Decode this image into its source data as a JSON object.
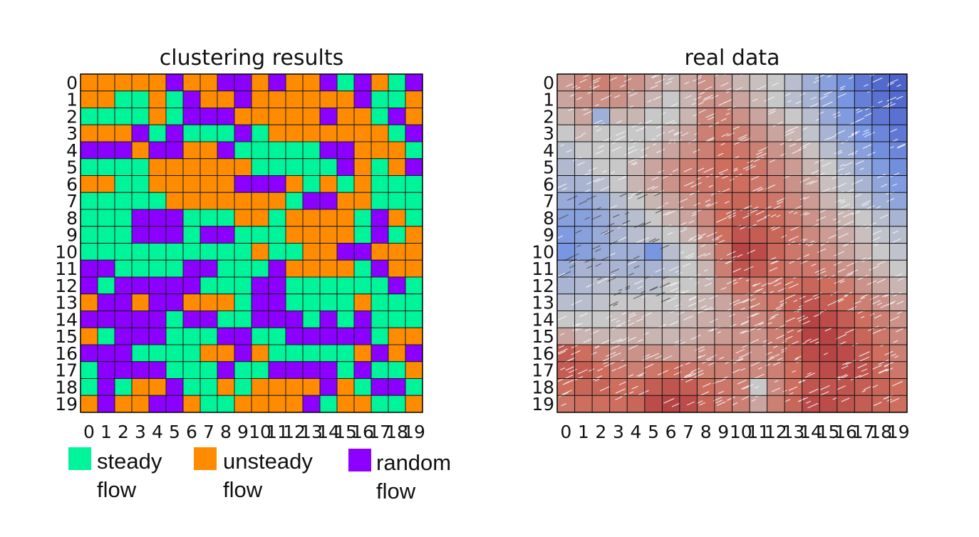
{
  "chart_data": [
    {
      "type": "heatmap",
      "title": "clustering results",
      "x": [
        "0",
        "1",
        "2",
        "3",
        "4",
        "5",
        "6",
        "7",
        "8",
        "9",
        "10",
        "11",
        "12",
        "13",
        "14",
        "15",
        "16",
        "17",
        "18",
        "19"
      ],
      "y": [
        "0",
        "1",
        "2",
        "3",
        "4",
        "5",
        "6",
        "7",
        "8",
        "9",
        "10",
        "11",
        "12",
        "13",
        "14",
        "15",
        "16",
        "17",
        "18",
        "19"
      ],
      "categories": {
        "S": {
          "label": "steady flow",
          "color": "#00f59a"
        },
        "U": {
          "label": "unsteady flow",
          "color": "#ff8c00"
        },
        "R": {
          "label": "random flow",
          "color": "#8b00ff"
        }
      },
      "rows": [
        "UUUUURUURRURUURSRUSR",
        "UUSSUSRUURUUUUUURSSU",
        "SSSSUSRRRUUUUURUUSRU",
        "UUURSRSSSRSUUUUUUUSR",
        "RRRURRUURSSSSSRRUUUS",
        "SSSSUUUUUUSSSSSRUSUR",
        "UUSSUUUUURRRUSUSUSSS",
        "SSSSSUUUUUUUSRRUUSSS",
        "SSSRRRSSSUUSUUUUSRUS",
        "SSSRRRSRRSSSUUUUSRSU",
        "SSSSSSSSSSUSSUURRUUU",
        "RRSSSSRRSSSRUUUUSRUU",
        "RSRRRRRSSSRRSSSSSSRS",
        "URRURRUUUSRRSSSSUSSS",
        "RRRRRSRRSSRRRSRSRSSS",
        "USRRRSSSRRSSRRRRRSUU",
        "RRRSSSSUURUSSSSSURUR",
        "SRRRRSSSRSSRRRRSRSSU",
        "SRSUURSSUSUUUURUSRRS",
        "URUURRUSSUUUURSUUSSU"
      ]
    },
    {
      "type": "heatmap",
      "title": "real data",
      "x": [
        "0",
        "1",
        "2",
        "3",
        "4",
        "5",
        "6",
        "7",
        "8",
        "9",
        "10",
        "11",
        "12",
        "13",
        "14",
        "15",
        "16",
        "17",
        "18",
        "19"
      ],
      "y": [
        "0",
        "1",
        "2",
        "3",
        "4",
        "5",
        "6",
        "7",
        "8",
        "9",
        "10",
        "11",
        "12",
        "13",
        "14",
        "15",
        "16",
        "17",
        "18",
        "19"
      ],
      "colormap": "coolwarm",
      "scale": [
        -1,
        1
      ],
      "rows": [
        [
          0.25,
          0.35,
          0.4,
          0.35,
          0.3,
          0.2,
          0.1,
          0.2,
          0.3,
          0.2,
          0.1,
          0.05,
          0.0,
          -0.1,
          -0.25,
          -0.4,
          -0.55,
          -0.7,
          -0.8,
          -0.85
        ],
        [
          0.2,
          0.3,
          0.3,
          0.3,
          0.2,
          0.1,
          0.0,
          0.1,
          0.3,
          0.3,
          0.2,
          0.1,
          0.0,
          -0.1,
          -0.2,
          -0.35,
          -0.5,
          -0.65,
          -0.75,
          -0.8
        ],
        [
          0.1,
          0.2,
          -0.25,
          0.1,
          0.1,
          0.0,
          0.0,
          0.1,
          0.35,
          0.4,
          0.3,
          0.2,
          0.1,
          0.0,
          -0.1,
          -0.3,
          -0.45,
          -0.6,
          -0.7,
          -0.75
        ],
        [
          0.0,
          0.1,
          0.0,
          0.0,
          0.0,
          0.0,
          0.1,
          0.2,
          0.4,
          0.45,
          0.4,
          0.3,
          0.2,
          0.1,
          -0.05,
          -0.2,
          -0.35,
          -0.5,
          -0.6,
          -0.7
        ],
        [
          -0.1,
          0.0,
          0.0,
          0.0,
          0.0,
          0.1,
          0.2,
          0.3,
          0.4,
          0.5,
          0.45,
          0.4,
          0.3,
          0.2,
          0.05,
          -0.1,
          -0.25,
          -0.4,
          -0.55,
          -0.6
        ],
        [
          -0.15,
          -0.1,
          0.0,
          0.0,
          0.1,
          0.2,
          0.3,
          0.4,
          0.45,
          0.5,
          0.5,
          0.45,
          0.35,
          0.25,
          0.1,
          0.0,
          -0.15,
          -0.3,
          -0.45,
          -0.55
        ],
        [
          -0.2,
          -0.2,
          -0.1,
          0.0,
          0.1,
          0.2,
          0.3,
          0.4,
          0.45,
          0.5,
          0.5,
          0.45,
          0.4,
          0.3,
          0.2,
          0.05,
          -0.05,
          -0.2,
          -0.35,
          -0.45
        ],
        [
          -0.3,
          -0.35,
          -0.25,
          -0.1,
          0.0,
          0.1,
          0.2,
          0.3,
          0.4,
          0.5,
          0.55,
          0.5,
          0.45,
          0.35,
          0.25,
          0.1,
          0.0,
          -0.1,
          -0.25,
          -0.35
        ],
        [
          -0.4,
          -0.4,
          -0.3,
          -0.2,
          -0.1,
          0.0,
          0.1,
          0.2,
          0.35,
          0.5,
          0.6,
          0.55,
          0.5,
          0.4,
          0.3,
          0.2,
          0.1,
          0.0,
          -0.1,
          -0.2
        ],
        [
          -0.45,
          -0.4,
          -0.3,
          -0.2,
          -0.1,
          -0.05,
          0.0,
          0.1,
          0.3,
          0.5,
          0.65,
          0.6,
          0.55,
          0.45,
          0.35,
          0.25,
          0.15,
          0.05,
          -0.05,
          -0.1
        ],
        [
          -0.5,
          -0.4,
          -0.3,
          -0.25,
          -0.25,
          -0.5,
          -0.1,
          0.0,
          0.2,
          0.45,
          0.75,
          0.7,
          0.55,
          0.45,
          0.4,
          0.3,
          0.2,
          0.1,
          0.0,
          -0.05
        ],
        [
          -0.3,
          -0.2,
          -0.2,
          -0.2,
          -0.2,
          -0.2,
          -0.1,
          0.0,
          0.1,
          0.4,
          0.65,
          0.6,
          0.5,
          0.45,
          0.45,
          0.4,
          0.3,
          0.2,
          0.1,
          0.0
        ],
        [
          -0.2,
          -0.15,
          -0.1,
          -0.1,
          -0.1,
          -0.1,
          0.0,
          0.0,
          0.1,
          0.3,
          0.45,
          0.45,
          0.45,
          0.5,
          0.55,
          0.5,
          0.4,
          0.3,
          0.2,
          0.1
        ],
        [
          -0.1,
          -0.1,
          -0.05,
          0.0,
          0.0,
          0.0,
          0.0,
          0.05,
          0.1,
          0.2,
          0.35,
          0.4,
          0.45,
          0.55,
          0.65,
          0.6,
          0.5,
          0.4,
          0.3,
          0.2
        ],
        [
          0.0,
          0.0,
          0.0,
          0.05,
          0.1,
          0.05,
          0.05,
          0.1,
          0.15,
          0.2,
          0.3,
          0.35,
          0.4,
          0.55,
          0.75,
          0.7,
          0.6,
          0.5,
          0.4,
          0.3
        ],
        [
          0.2,
          0.1,
          0.1,
          0.1,
          0.15,
          0.1,
          0.1,
          0.15,
          0.2,
          0.25,
          0.3,
          0.3,
          0.4,
          0.55,
          0.75,
          0.75,
          0.65,
          0.55,
          0.45,
          0.35
        ],
        [
          0.6,
          0.5,
          0.4,
          0.3,
          0.3,
          0.3,
          0.25,
          0.25,
          0.3,
          0.35,
          0.35,
          0.3,
          0.4,
          0.55,
          0.7,
          0.75,
          0.7,
          0.6,
          0.5,
          0.4
        ],
        [
          0.6,
          0.6,
          0.5,
          0.45,
          0.4,
          0.45,
          0.5,
          0.45,
          0.4,
          0.4,
          0.4,
          0.35,
          0.4,
          0.5,
          0.65,
          0.7,
          0.7,
          0.65,
          0.55,
          0.45
        ],
        [
          0.5,
          0.55,
          0.55,
          0.5,
          0.5,
          0.6,
          0.65,
          0.6,
          0.5,
          0.45,
          0.4,
          0.0,
          0.35,
          0.5,
          0.65,
          0.65,
          0.65,
          0.6,
          0.55,
          0.5
        ],
        [
          0.45,
          0.5,
          0.5,
          0.5,
          0.55,
          0.7,
          0.75,
          0.7,
          0.55,
          0.45,
          0.4,
          0.2,
          0.4,
          0.55,
          0.7,
          0.7,
          0.65,
          0.6,
          0.55,
          0.5
        ]
      ]
    }
  ]
}
